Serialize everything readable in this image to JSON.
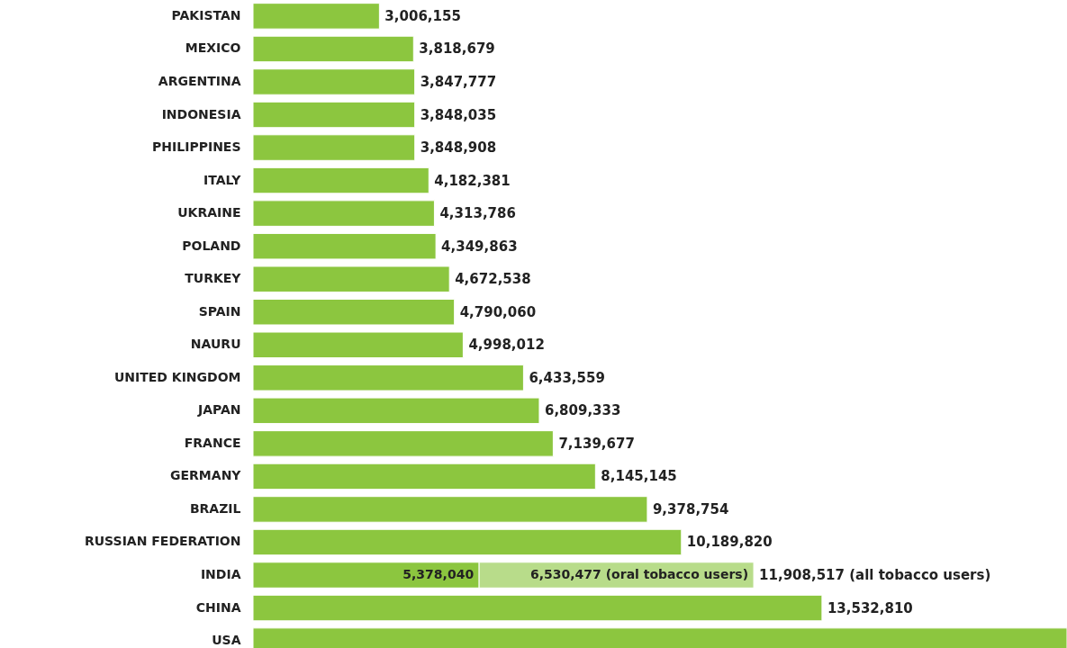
{
  "chart_data": {
    "type": "bar",
    "orientation": "horizontal",
    "stacked": true,
    "categories": [
      "PAKISTAN",
      "MEXICO",
      "ARGENTINA",
      "INDONESIA",
      "PHILIPPINES",
      "ITALY",
      "UKRAINE",
      "POLAND",
      "TURKEY",
      "SPAIN",
      "NAURU",
      "UNITED KINGDOM",
      "JAPAN",
      "FRANCE",
      "GERMANY",
      "BRAZIL",
      "RUSSIAN FEDERATION",
      "INDIA",
      "CHINA",
      "USA"
    ],
    "series": [
      {
        "color": "#8cc63f",
        "values": [
          3006155,
          3818679,
          3847777,
          3848035,
          3848908,
          4182381,
          4313786,
          4349863,
          4672538,
          4790060,
          4998012,
          6433559,
          6809333,
          7139677,
          8145145,
          9378754,
          10189820,
          5378040,
          13532810,
          19360000
        ],
        "value_labels": [
          "3,006,155",
          "3,818,679",
          "3,847,777",
          "3,848,035",
          "3,848,908",
          "4,182,381",
          "4,313,786",
          "4,349,863",
          "4,672,538",
          "4,790,060",
          "4,998,012",
          "6,433,559",
          "6,809,333",
          "7,139,677",
          "8,145,145",
          "9,378,754",
          "10,189,820",
          "5,378,040",
          "13,532,810",
          null
        ]
      },
      {
        "color": "#b8dc8a",
        "values": [
          null,
          null,
          null,
          null,
          null,
          null,
          null,
          null,
          null,
          null,
          null,
          null,
          null,
          null,
          null,
          null,
          null,
          6530477,
          null,
          null
        ],
        "value_labels": [
          null,
          null,
          null,
          null,
          null,
          null,
          null,
          null,
          null,
          null,
          null,
          null,
          null,
          null,
          null,
          null,
          null,
          "6,530,477 (oral tobacco users)",
          null,
          null
        ]
      }
    ],
    "totals": [
      null,
      null,
      null,
      null,
      null,
      null,
      null,
      null,
      null,
      null,
      null,
      null,
      null,
      null,
      null,
      null,
      null,
      "11,908,517 (all tobacco users)",
      null,
      null
    ],
    "xlim": [
      0,
      19360000
    ],
    "tick_labels": "y"
  }
}
